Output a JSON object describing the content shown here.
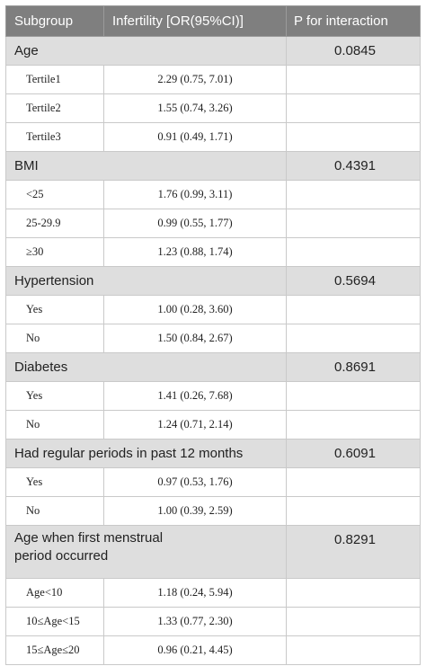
{
  "headers": {
    "subgroup": "Subgroup",
    "infertility": "Infertility [OR(95%CI)]",
    "p": "P for interaction"
  },
  "groups": [
    {
      "label": "Age",
      "p": "0.0845",
      "rows": [
        {
          "label": "Tertile1",
          "value": "2.29 (0.75, 7.01)"
        },
        {
          "label": "Tertile2",
          "value": "1.55 (0.74, 3.26)"
        },
        {
          "label": "Tertile3",
          "value": "0.91 (0.49, 1.71)"
        }
      ]
    },
    {
      "label": "BMI",
      "p": "0.4391",
      "rows": [
        {
          "label": "<25",
          "value": "1.76 (0.99, 3.11)"
        },
        {
          "label": "25-29.9",
          "value": "0.99 (0.55, 1.77)"
        },
        {
          "label": "≥30",
          "value": "1.23 (0.88, 1.74)"
        }
      ]
    },
    {
      "label": "Hypertension",
      "p": "0.5694",
      "rows": [
        {
          "label": "Yes",
          "value": "1.00 (0.28, 3.60)"
        },
        {
          "label": "No",
          "value": "1.50 (0.84, 2.67)"
        }
      ]
    },
    {
      "label": "Diabetes",
      "p": "0.8691",
      "rows": [
        {
          "label": "Yes",
          "value": "1.41 (0.26, 7.68)"
        },
        {
          "label": "No",
          "value": "1.24 (0.71, 2.14)"
        }
      ]
    },
    {
      "label": "Had regular periods in past 12 months",
      "p": "0.6091",
      "rows": [
        {
          "label": "Yes",
          "value": "0.97 (0.53, 1.76)"
        },
        {
          "label": "No",
          "value": "1.00 (0.39, 2.59)"
        }
      ]
    },
    {
      "label_line1": "Age when first menstrual",
      "label_line2": "period occurred",
      "p": "0.8291",
      "rows": [
        {
          "label": "Age<10",
          "value": "1.18 (0.24, 5.94)"
        },
        {
          "label": "10≤Age<15",
          "value": "1.33 (0.77, 2.30)"
        },
        {
          "label": "15≤Age≤20",
          "value": "0.96 (0.21, 4.45)"
        }
      ]
    }
  ]
}
